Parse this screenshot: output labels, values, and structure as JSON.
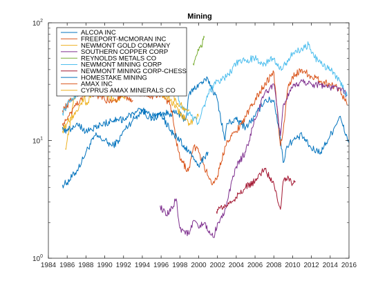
{
  "chart_data": {
    "type": "line",
    "title": "Mining",
    "xlabel": "",
    "ylabel": "",
    "xlim": [
      1984,
      2016
    ],
    "ylim": [
      1,
      100
    ],
    "yscale": "log",
    "grid": false,
    "legend_position": "top-left",
    "x_ticks": [
      1984,
      1986,
      1988,
      1990,
      1992,
      1994,
      1996,
      1998,
      2000,
      2002,
      2004,
      2006,
      2008,
      2010,
      2012,
      2014,
      2016
    ],
    "y_ticks": [
      {
        "value": 1,
        "label": "10",
        "exp": "0"
      },
      {
        "value": 10,
        "label": "10",
        "exp": "1"
      },
      {
        "value": 100,
        "label": "10",
        "exp": "2"
      }
    ],
    "series": [
      {
        "name": "ALCOA INC",
        "color": "#0072BD",
        "x": [
          1985.5,
          1986,
          1987,
          1987.7,
          1988,
          1989,
          1990,
          1990.8,
          1991.5,
          1992,
          1993,
          1994,
          1995,
          1996,
          1997,
          1997.8,
          1998.6,
          1999,
          2000,
          2001,
          2002,
          2002.8,
          2003,
          2004,
          2005,
          2006,
          2007,
          2008,
          2008.6,
          2009,
          2009.4,
          2010,
          2011,
          2012,
          2013,
          2014,
          2015,
          2016
        ],
        "y": [
          4.2,
          4.4,
          5.5,
          7,
          8,
          11,
          10,
          9,
          10,
          12,
          15,
          18,
          15,
          17,
          17,
          17,
          15,
          25,
          30,
          33,
          22,
          10,
          14,
          15,
          13,
          16,
          22,
          22,
          12,
          6.5,
          9,
          10,
          11,
          8.5,
          8,
          11,
          16,
          9.5
        ]
      },
      {
        "name": "FREEPORT-MCMORAN INC",
        "color": "#D95319",
        "x": [
          1985.5,
          1986,
          1987,
          1988,
          1989,
          1990,
          1991,
          1992,
          1993,
          1994,
          1995,
          1996,
          1997,
          1997.6,
          1998,
          1998.9,
          1999.5,
          2000,
          2001,
          2001.5,
          2002,
          2003,
          2004,
          2005,
          2006,
          2007,
          2008,
          2008.7,
          2009,
          2009.5,
          2010,
          2011,
          2012,
          2013,
          2014,
          2015,
          2015.8
        ],
        "y": [
          18,
          20,
          25,
          26,
          27,
          25,
          28,
          30,
          26,
          25,
          24,
          25,
          20,
          10,
          7,
          5.5,
          9,
          8,
          5,
          4.3,
          5,
          10,
          12,
          16,
          22,
          30,
          38,
          9,
          12,
          28,
          35,
          40,
          35,
          32,
          30,
          28,
          20
        ]
      },
      {
        "name": "NEWMONT GOLD COMPANY",
        "color": "#EDB120",
        "x": [
          1985.8,
          1986,
          1987,
          1987.8,
          1988,
          1989,
          1990,
          1991,
          1992,
          1993,
          1994,
          1995,
          1996,
          1997,
          1998,
          1999,
          2000
        ],
        "y": [
          8.5,
          10,
          30,
          25,
          20,
          28,
          25,
          22,
          23,
          30,
          32,
          30,
          25,
          22,
          17,
          14,
          16
        ]
      },
      {
        "name": "SOUTHERN COPPER CORP",
        "color": "#7E2F8E",
        "x": [
          1995.9,
          1996.5,
          1997,
          1997.6,
          1998,
          1999,
          1999.5,
          2000,
          2000.6,
          2001,
          2001.6,
          2002,
          2002.5,
          2003,
          2004,
          2005,
          2006,
          2007,
          2008,
          2008.7,
          2009,
          2010,
          2011,
          2012,
          2013,
          2014,
          2015,
          2015.8
        ],
        "y": [
          2.8,
          2.3,
          2.5,
          3.2,
          1.8,
          1.6,
          2.1,
          1.8,
          2.0,
          1.7,
          1.5,
          2.0,
          2.2,
          3,
          6,
          8,
          15,
          25,
          30,
          11,
          20,
          28,
          32,
          30,
          30,
          28,
          28,
          24
        ]
      },
      {
        "name": "REYNOLDS METALS CO",
        "color": "#77AC30",
        "x": [
          1999.4,
          1999.7,
          2000,
          2000.3,
          2000.5,
          2000.6
        ],
        "y": [
          45,
          52,
          58,
          62,
          72,
          75
        ]
      },
      {
        "name": "NEWMONT MINING CORP",
        "color": "#4DBEEE",
        "x": [
          1985.5,
          1986,
          1987,
          1988,
          1989,
          1990,
          1991,
          1992,
          1993,
          1994,
          1995,
          1996,
          1997,
          1997.8,
          1998,
          1999,
          2000,
          2000.6,
          2001,
          2002,
          2003,
          2004,
          2005,
          2006,
          2007,
          2008,
          2008.6,
          2009,
          2010,
          2011,
          2011.7,
          2012,
          2013,
          2014,
          2015,
          2015.8
        ],
        "y": [
          17,
          20,
          25,
          30,
          35,
          30,
          40,
          35,
          45,
          50,
          45,
          50,
          35,
          25,
          20,
          17,
          14,
          20,
          25,
          32,
          35,
          45,
          48,
          50,
          45,
          50,
          40,
          42,
          55,
          60,
          65,
          55,
          45,
          40,
          32,
          24
        ]
      },
      {
        "name": "NEWMONT MINING CORP-CHESS",
        "color": "#A2142F",
        "x": [
          2001.9,
          2002,
          2003,
          2004,
          2005,
          2006,
          2007,
          2008,
          2008.7,
          2009,
          2009.5,
          2010,
          2010.3
        ],
        "y": [
          2.5,
          2.6,
          2.8,
          3.3,
          4.0,
          4.5,
          5.8,
          4.3,
          2.6,
          4.5,
          5.0,
          4.3,
          4.5
        ]
      },
      {
        "name": "HOMESTAKE MINING",
        "color": "#0072BD",
        "x": [
          1985.5,
          1986,
          1987,
          1988,
          1989,
          1990,
          1991,
          1992,
          1993,
          1994,
          1995,
          1996,
          1997,
          1998,
          1999,
          2000,
          2001
        ],
        "y": [
          13,
          12,
          14,
          12,
          13,
          14,
          15,
          15,
          17,
          18,
          16,
          17,
          12,
          10,
          8,
          6,
          8
        ]
      },
      {
        "name": "AMAX INC",
        "color": "#D95319",
        "x": [
          1985.5,
          1986,
          1987,
          1988,
          1989,
          1990,
          1991,
          1992,
          1993
        ],
        "y": [
          14,
          15,
          20,
          25,
          25,
          22,
          22,
          24,
          22
        ]
      },
      {
        "name": "CYPRUS AMAX MINERALS CO",
        "color": "#EDB120",
        "x": [
          1985.5,
          1986,
          1987,
          1988,
          1989,
          1990,
          1991,
          1992,
          1993,
          1994,
          1995,
          1996,
          1997,
          1998,
          1999
        ],
        "y": [
          12,
          14,
          18,
          24,
          35,
          25,
          28,
          30,
          35,
          32,
          28,
          30,
          25,
          20,
          18
        ]
      }
    ]
  }
}
